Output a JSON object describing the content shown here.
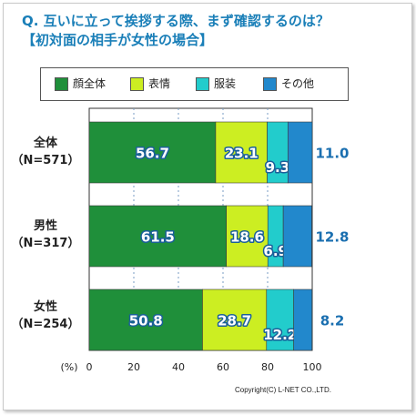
{
  "title": "Q. 互いに立って挨拶する際、まず確認するのは？",
  "subtitle": "【初対面の相手が女性の場合】",
  "copyright": "Copyright(C) L-NET CO.,LTD.",
  "colors": {
    "title": "#1a7fb8",
    "series": [
      "#1f8f3a",
      "#ccee22",
      "#22cccc",
      "#2288cc"
    ],
    "value_text": "#ffffff",
    "value_outline": "#1a5f99",
    "outside_value": "#1a6fb0"
  },
  "chart_data": {
    "type": "bar",
    "orientation": "horizontal",
    "stacked": true,
    "title": "Q. 互いに立って挨拶する際、まず確認するのは？",
    "subtitle": "【初対面の相手が女性の場合】",
    "categories": [
      {
        "name": "全体",
        "n": "（N=571）"
      },
      {
        "name": "男性",
        "n": "（N=317）"
      },
      {
        "name": "女性",
        "n": "（N=254）"
      }
    ],
    "series": [
      {
        "name": "顔全体",
        "values": [
          56.7,
          61.5,
          50.8
        ]
      },
      {
        "name": "表情",
        "values": [
          23.1,
          18.6,
          28.7
        ]
      },
      {
        "name": "服装",
        "values": [
          9.3,
          6.9,
          12.2
        ]
      },
      {
        "name": "その他",
        "values": [
          11.0,
          12.8,
          8.2
        ]
      }
    ],
    "xunit": "(%)",
    "xlim": [
      0,
      100
    ],
    "xticks": [
      0,
      20,
      40,
      60,
      80,
      100
    ],
    "grid": true,
    "legend": "top"
  }
}
